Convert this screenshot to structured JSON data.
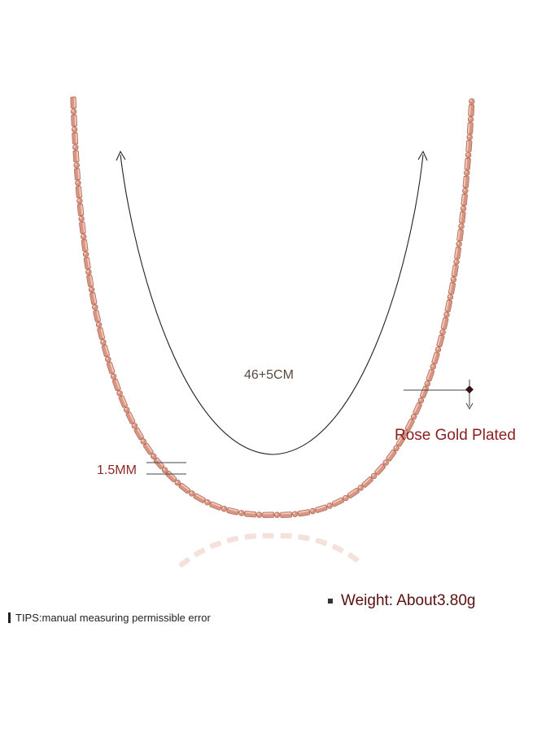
{
  "product": {
    "length_label": "46+5CM",
    "width_label": "1.5MM",
    "material_label": "Rose Gold Plated",
    "weight_label": "Weight: About3.80g",
    "tips_label": "TIPS:manual measuring permissible error"
  },
  "colors": {
    "chain": "#d89582",
    "chain_highlight": "#f6d2c6",
    "chain_shadow": "#a85d4c",
    "label_dark_red": "#8b1f1f",
    "measure_line": "#222222"
  }
}
